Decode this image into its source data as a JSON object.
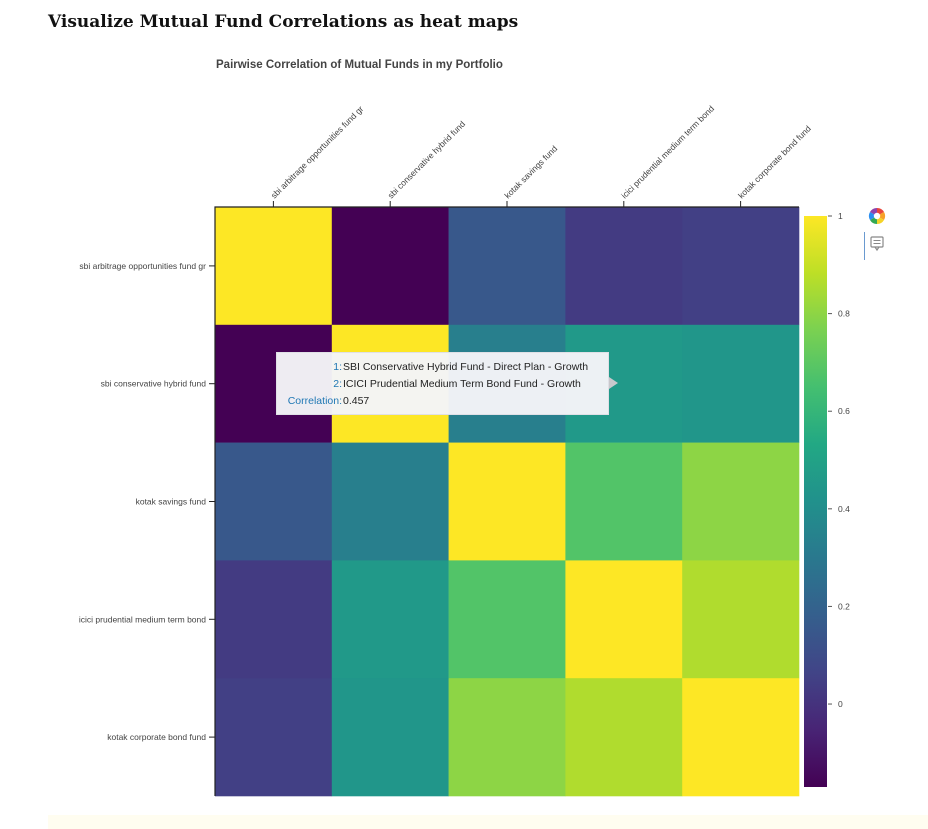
{
  "page": {
    "heading": "Visualize Mutual Fund Correlations as heat maps"
  },
  "chart_data": {
    "type": "heatmap",
    "title": "Pairwise Correlation of Mutual Funds in my Portfolio",
    "x_categories": [
      "sbi arbitrage opportunities fund gr",
      "sbi conservative hybrid fund",
      "kotak savings fund",
      "icici prudential medium term bond",
      "kotak corporate bond fund"
    ],
    "y_categories": [
      "sbi arbitrage opportunities fund gr",
      "sbi conservative hybrid fund",
      "kotak savings fund",
      "icici prudential medium term bond",
      "kotak corporate bond fund"
    ],
    "values": [
      [
        1.0,
        -0.17,
        0.15,
        0.03,
        0.05
      ],
      [
        -0.17,
        1.0,
        0.33,
        0.457,
        0.44
      ],
      [
        0.15,
        0.33,
        1.0,
        0.68,
        0.8
      ],
      [
        0.03,
        0.457,
        0.68,
        1.0,
        0.86
      ],
      [
        0.05,
        0.44,
        0.8,
        0.86,
        1.0
      ]
    ],
    "colorscale": "Viridis",
    "zmin": -0.17,
    "zmax": 1.0,
    "colorbar_ticks": [
      "0",
      "0.2",
      "0.4",
      "0.6",
      "0.8",
      "1"
    ],
    "colorbar_tick_values": [
      0,
      0.2,
      0.4,
      0.6,
      0.8,
      1.0
    ]
  },
  "tooltip": {
    "rows": [
      {
        "key": "1:",
        "value": "SBI Conservative Hybrid Fund - Direct Plan - Growth"
      },
      {
        "key": "2:",
        "value": "ICICI Prudential Medium Term Bond Fund - Growth"
      },
      {
        "key": "Correlation:",
        "value": "0.457"
      }
    ]
  },
  "toolbar": {
    "tools": [
      "bokeh-logo-icon",
      "hover-tool-icon"
    ]
  },
  "colors": {
    "axis": "#333333",
    "tick_text": "#444444",
    "tooltip_key": "#1f77b4"
  }
}
